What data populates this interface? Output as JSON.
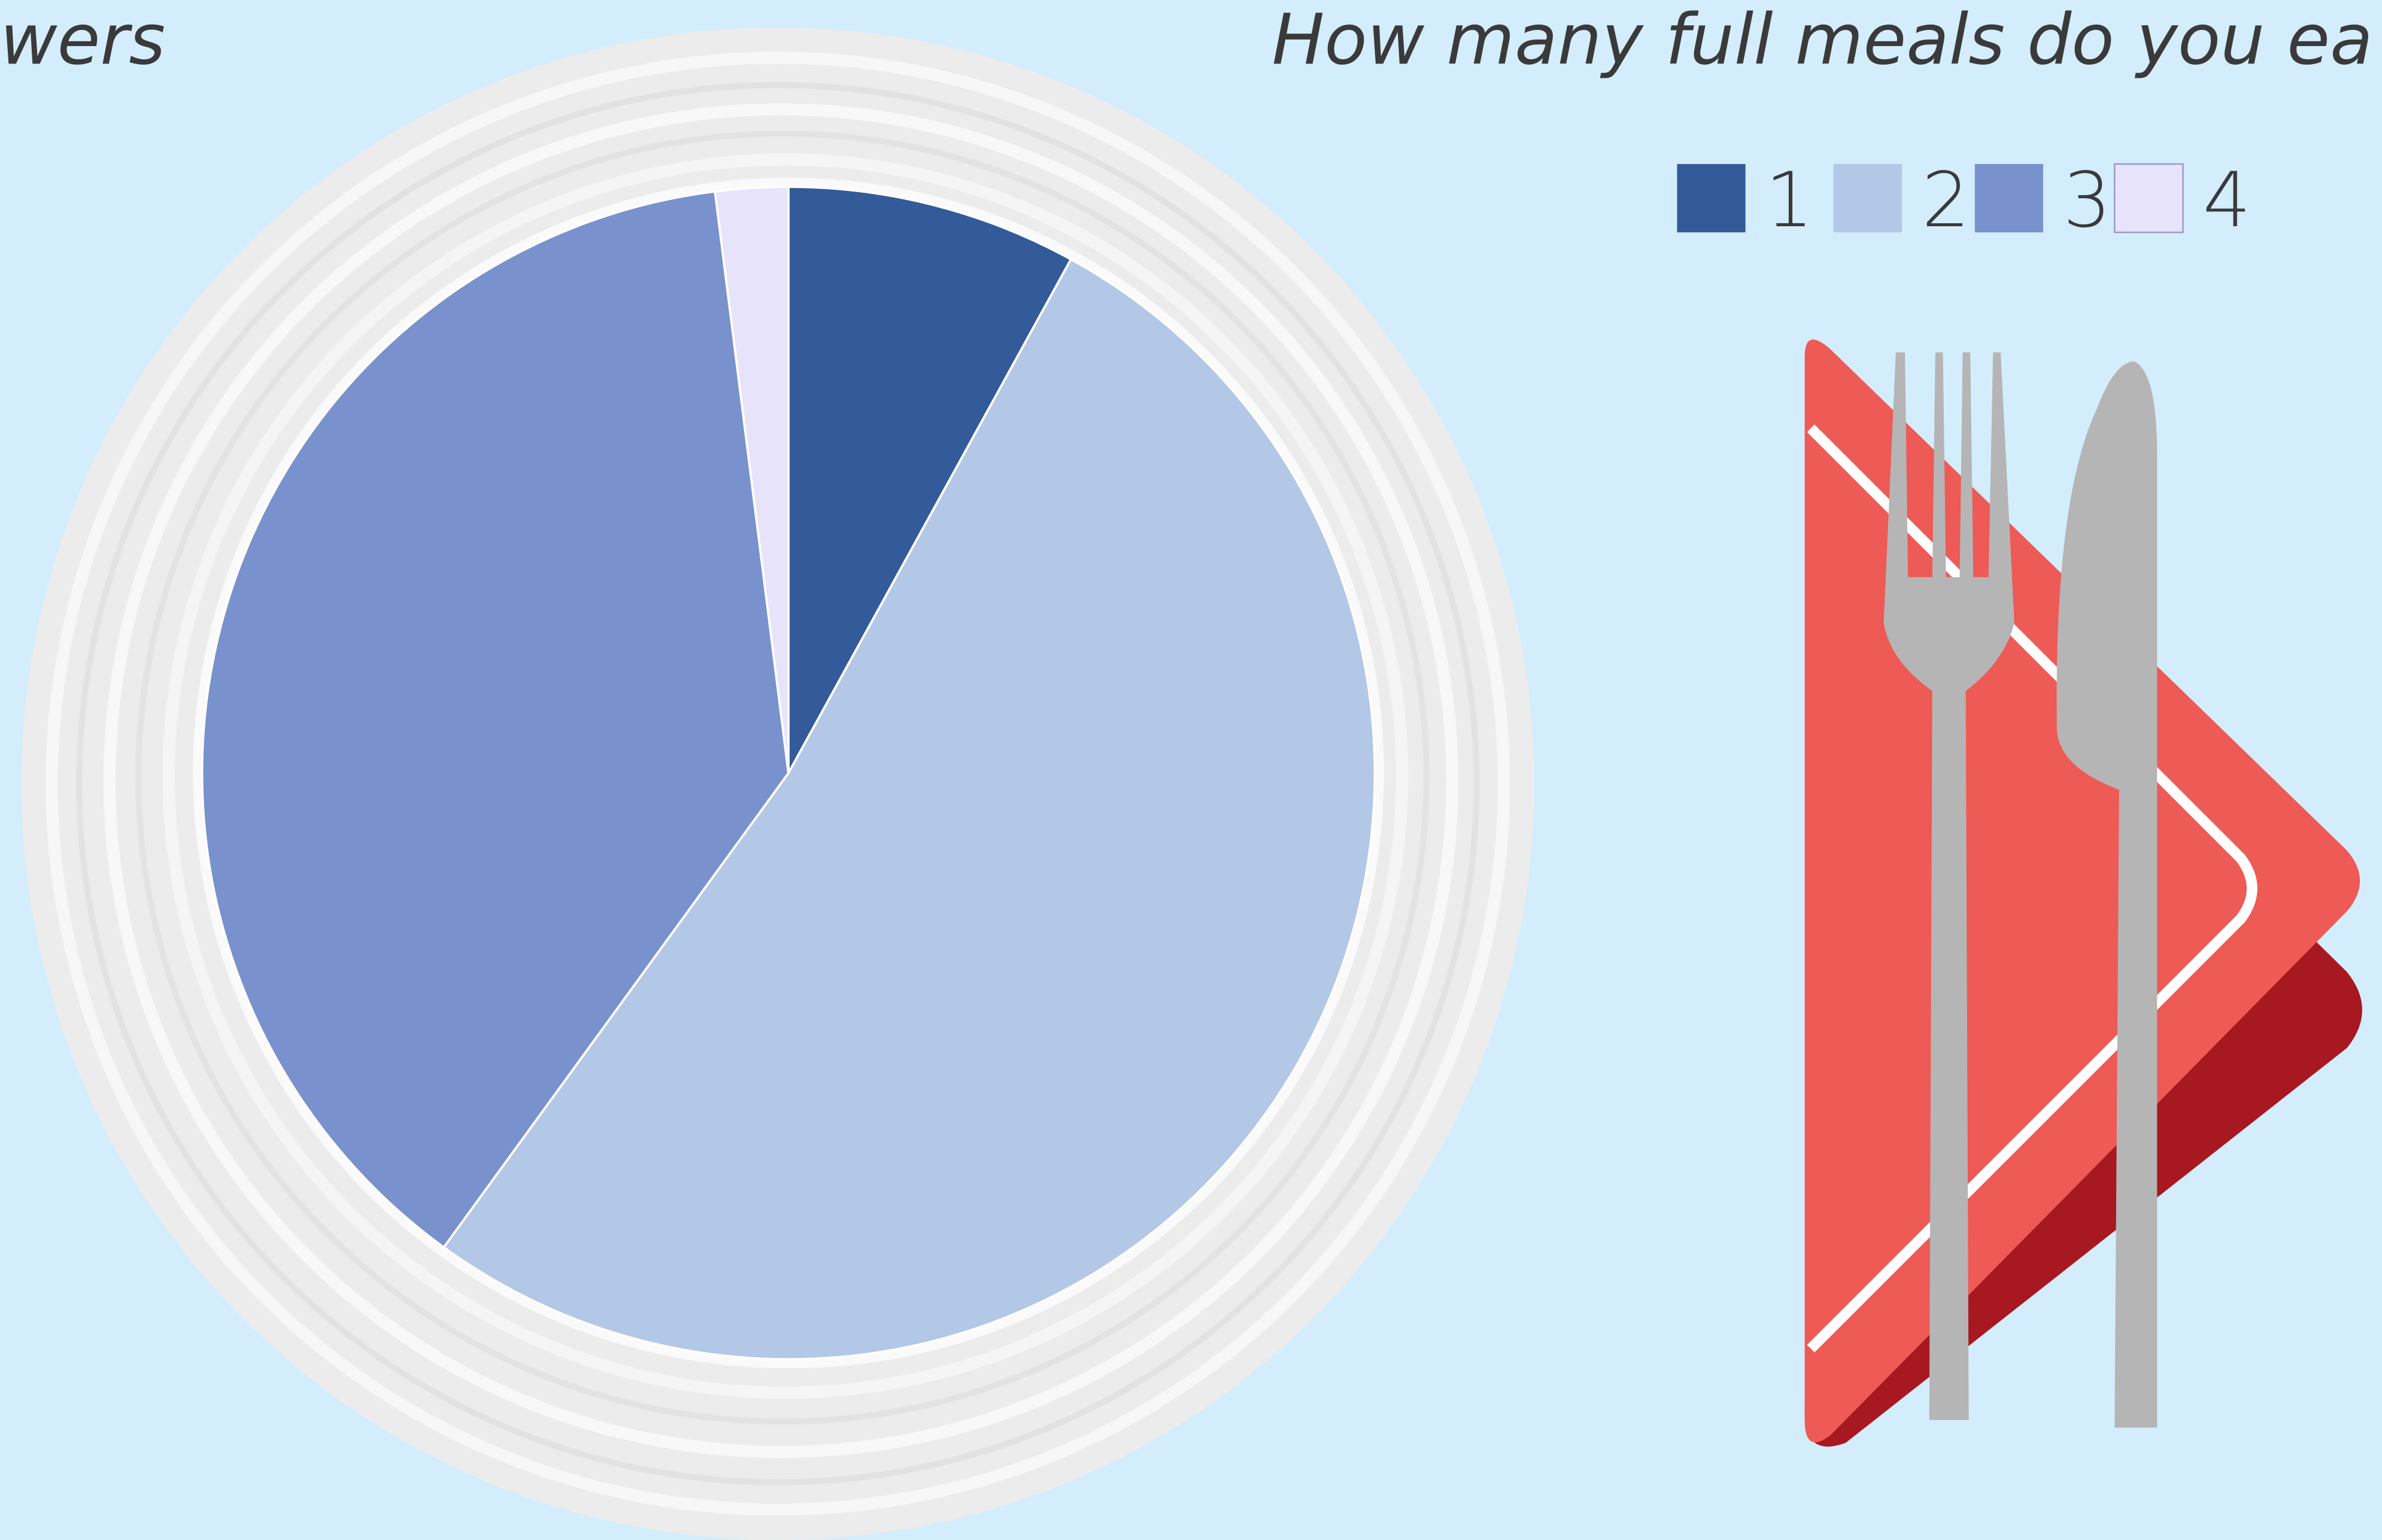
{
  "chart_data": {
    "type": "pie",
    "title": "How many full meals do you ea",
    "left_title": "wers",
    "categories": [
      "1",
      "2",
      "3",
      "4"
    ],
    "values": [
      8,
      52,
      38,
      2
    ],
    "colors": [
      "#335a99",
      "#b3c7e6",
      "#7991cd",
      "#e6e3fb"
    ],
    "legend": "top-right"
  }
}
